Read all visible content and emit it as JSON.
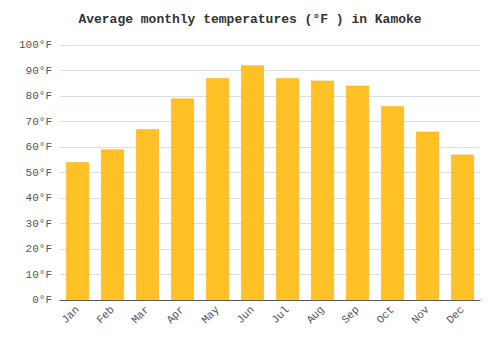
{
  "chart_data": {
    "type": "bar",
    "title": "Average monthly temperatures (°F ) in Kamoke",
    "categories": [
      "Jan",
      "Feb",
      "Mar",
      "Apr",
      "May",
      "Jun",
      "Jul",
      "Aug",
      "Sep",
      "Oct",
      "Nov",
      "Dec"
    ],
    "values": [
      54,
      59,
      67,
      79,
      87,
      92,
      87,
      86,
      84,
      76,
      66,
      57
    ],
    "color": "#FFC125",
    "ylim": [
      0,
      100
    ],
    "yticks": [
      {
        "value": 0,
        "label": "0°F"
      },
      {
        "value": 10,
        "label": "10°F"
      },
      {
        "value": 20,
        "label": "20°F"
      },
      {
        "value": 30,
        "label": "30°F"
      },
      {
        "value": 40,
        "label": "40°F"
      },
      {
        "value": 50,
        "label": "50°F"
      },
      {
        "value": 60,
        "label": "60°F"
      },
      {
        "value": 70,
        "label": "70°F"
      },
      {
        "value": 80,
        "label": "80°F"
      },
      {
        "value": 90,
        "label": "90°F"
      },
      {
        "value": 100,
        "label": "100°F"
      }
    ],
    "grid": true
  }
}
